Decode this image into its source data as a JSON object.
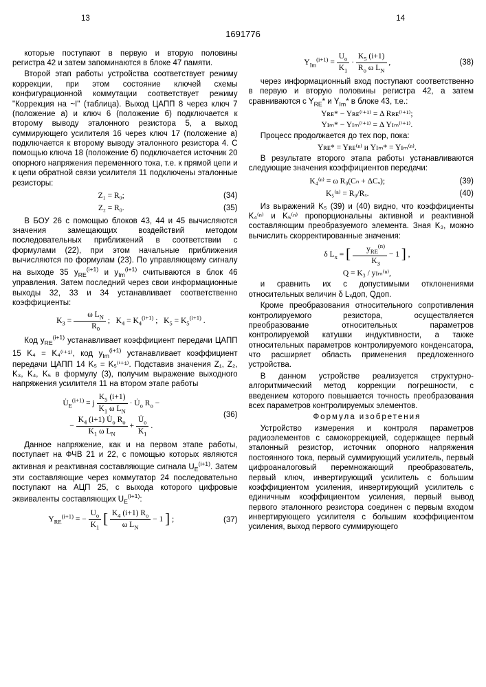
{
  "header": {
    "page_left": "13",
    "page_right": "14",
    "doc_number": "1691776"
  },
  "line_markers": [
    "5",
    "10",
    "15",
    "20",
    "25",
    "30",
    "35",
    "40",
    "45",
    "50",
    "55"
  ],
  "left": {
    "p1": "которые поступают в первую и вторую половины регистра 42 и затем запоминаются в блоке 47 памяти.",
    "p2": "Второй этап работы устройства соответствует режиму коррекции, при этом состояние ключей схемы конфигурационной коммутации соответствует режиму \"Коррекция на ~I\" (таблица). Выход ЦАПП 8 через ключ 7 (положение а) и ключ 6 (положение б) подключается к второму выводу эталонного резистора 5, а выход суммирующего усилителя 16 через ключ 17 (положение а) подключается к второму выводу эталонного резистора 4. С помощью ключа 18 (положение б) подключается источник 20 опорного напряжения переменного тока, т.е. к прямой цепи и к цепи обратной связи усилителя 11 подключены эталонные резисторы:",
    "eq34": "Z₁ = R₀;",
    "eq34n": "(34)",
    "eq35": "Z₂ = R₀.",
    "eq35n": "(35)",
    "p3a": "В БОУ 26 с помощью блоков 43, 44 и 45 вычисляются значения замещающих воздействий методом последовательных приближений в соответствии с формулами (22), при этом начальные приближения вычисляются по формулам (23). По управляющему сигналу на выходе 35 y",
    "p3b": " и y",
    "p3c": " считываются в блок 46 управления. Затем последний через свои информационные выходы 32, 33 и 34 устанавливает соответственно коэффициенты:",
    "eqK": "K₃ = ω Lₙ / R₀ ;   K₄ = K₄⁽ⁱ⁺¹⁾ ;   K₅ = K₅⁽ⁱ⁺¹⁾ .",
    "p4a": "Код y",
    "p4b": " устанавливает коэффициент передачи ЦАПП 15 K₄ = K₄⁽ⁱ⁺¹⁾, код y",
    "p4c": " устанавливает коэффициент передачи ЦАПП 14 K₅ = K₅⁽ⁱ⁺¹⁾. Подставив значения Z₁, Z₂, K₃, K₄, K₅ в формулу (3), получим выражение выходного напряжения усилителя 11 на втором этапе работы",
    "eq36n": "(36)",
    "p5a": "Данное напряжение, как и на первом этапе работы, поступает на ФЧВ 21 и 22, с помощью которых являются активная и реактивная составляющие сигнала U",
    "p5b": ". Затем эти составляющие через коммутатор 24 последовательно поступают на АЦП 25, с выхода которого цифровые эквиваленты составляющих U",
    "p5c": ":",
    "eq37n": "(37)"
  },
  "right": {
    "eq38n": "(38)",
    "p1a": "через информационный вход поступают соответственно в первую и вторую половины регистра 42, а затем сравниваются с Y",
    "p1b": " и Y",
    "p1c": " в блоке 43, т.е.:",
    "eqA": "Yʀᴇ* − Yʀᴇ⁽ⁱ⁺¹⁾ = Δ Rʀᴇ⁽ⁱ⁺¹⁾;",
    "eqB": "Yɪₘ* − Yɪₘ⁽ⁱ⁺¹⁾ = Δ Yɪₘ⁽ⁱ⁺¹⁾.",
    "p2": "Процесс продолжается до тех пор, пока:",
    "eqC": "Yʀᴇ* = Yʀᴇ⁽ⁿ⁾   и   Yɪₘ* = Yɪₘ⁽ⁿ⁾.",
    "p3": "В результате второго этапа работы устанавливаются следующие значения коэффициентов передачи:",
    "eq39": "K₄⁽ⁿ⁾ = ω R₀(Cₙ + ΔCₓ);",
    "eq39n": "(39)",
    "eq40": "K₅⁽ⁿ⁾ = R₀/Rₓ.",
    "eq40n": "(40)",
    "p4": "Из выражений K₅ (39) и (40) видно, что коэффициенты K₄⁽ⁿ⁾ и K₅⁽ⁿ⁾ пропорциональны активной и реактивной составляющим преобразуемого элемента. Зная K₃, можно вычислить скорректированные значения:",
    "eqQ": "Q = K₃ / yɪₘ⁽ⁿ⁾,",
    "p5": "и сравнить их с допустимыми отклонениями относительных величин δ Lₓдоп, Qдоп.",
    "p6": "Кроме преобразования относительного сопротивления контролируемого резистора, осуществляется преобразование относительных параметров контролируемой катушки индуктивности, а также относительных параметров контролируемого конденсатора, что расширяет область применения предложенного устройства.",
    "p7": "В данном устройстве реализуется структурно-алгоритмический метод коррекции погрешности, с введением которого повышается точность преобразования всех параметров контролируемых элементов.",
    "claims_title": "Формула изобретения",
    "p8": "Устройство измерения и контроля параметров радиоэлементов с самокоррекцией, содержащее первый эталонный резистор, источник опорного напряжения постоянного тока, первый суммирующий усилитель, первый цифроаналоговый перемножающий преобразователь, первый ключ, инвертирующий усилитель с большим коэффициентом усиления, инвертирующий усилитель с единичным коэффициентом усиления, первый вывод первого эталонного резистора соединен с первым входом инвертирующего усилителя с большим коэффициентом усиления, выход первого суммирующего"
  }
}
